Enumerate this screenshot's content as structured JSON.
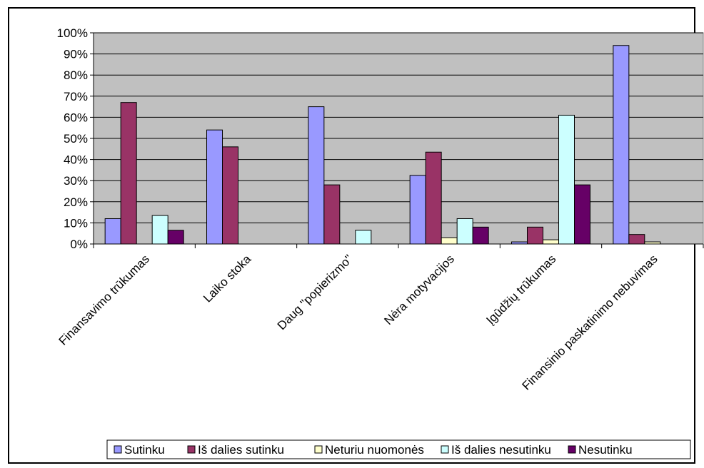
{
  "chart_data": {
    "type": "bar",
    "categories": [
      "Finansavimo trūkumas",
      "Laiko stoka",
      "Daug \"popierizmo\"",
      "Nėra motyvacijos",
      "Įgūdžių trūkumas",
      "Finansinio paskatinimo nebuvimas"
    ],
    "series": [
      {
        "name": "Sutinku",
        "color": "#9999ff",
        "values": [
          12,
          54,
          65,
          32.5,
          1,
          94
        ]
      },
      {
        "name": "Iš dalies sutinku",
        "color": "#993366",
        "values": [
          67,
          46,
          28,
          43.5,
          8,
          4.5
        ]
      },
      {
        "name": "Neturiu nuomonės",
        "color": "#ffffcc",
        "values": [
          0,
          0,
          0,
          3,
          2,
          1
        ]
      },
      {
        "name": "Iš dalies nesutinku",
        "color": "#ccffff",
        "values": [
          13.5,
          0,
          6.5,
          12,
          61,
          0
        ]
      },
      {
        "name": "Nesutinku",
        "color": "#660066",
        "values": [
          6.5,
          0,
          0,
          8,
          28,
          0
        ]
      }
    ],
    "y_ticks": [
      "0%",
      "10%",
      "20%",
      "30%",
      "40%",
      "50%",
      "60%",
      "70%",
      "80%",
      "90%",
      "100%"
    ],
    "ylim": [
      0,
      100
    ],
    "grid": true,
    "plot_background": "#c0c0c0",
    "legend_position": "bottom",
    "title": "",
    "xlabel": "",
    "ylabel": ""
  }
}
